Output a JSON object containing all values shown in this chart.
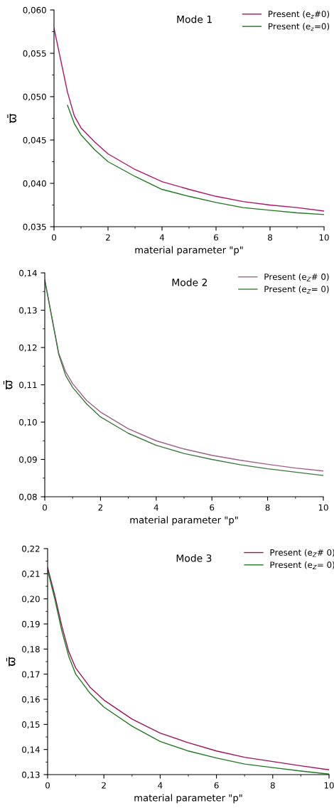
{
  "chart_data": [
    {
      "type": "line",
      "title": "Mode 1",
      "xlabel": "material parameter \"p\"",
      "ylabel": "ϖ̄",
      "xlim": [
        0,
        10
      ],
      "xticks": [
        0,
        2,
        4,
        6,
        8,
        10
      ],
      "ylim": [
        0.035,
        0.06
      ],
      "yticks": [
        {
          "value": 0.035,
          "label": "0,035"
        },
        {
          "value": 0.04,
          "label": "0,040"
        },
        {
          "value": 0.045,
          "label": "0,045"
        },
        {
          "value": 0.05,
          "label": "0,050"
        },
        {
          "value": 0.055,
          "label": "0,055"
        },
        {
          "value": 0.06,
          "label": "0,060"
        }
      ],
      "legend": "top right",
      "grid": false,
      "marker": "none",
      "line_style": "solid",
      "series": [
        {
          "name": "Present (e$_{z}$#0)",
          "color": "#b0106a",
          "x": [
            0,
            0.5,
            0.75,
            1,
            1.5,
            2,
            3,
            4,
            5,
            6,
            7,
            8,
            9,
            10
          ],
          "values": [
            0.0579,
            0.0505,
            0.0478,
            0.0464,
            0.0448,
            0.0434,
            0.0416,
            0.0402,
            0.0393,
            0.0385,
            0.0379,
            0.0375,
            0.0372,
            0.0368
          ]
        },
        {
          "name": "Present (e$_{z}$=0)",
          "color": "#1e7a1e",
          "x": [
            0.5,
            0.75,
            1,
            1.5,
            2,
            3,
            4,
            5,
            6,
            7,
            8,
            9,
            10
          ],
          "values": [
            0.049,
            0.0469,
            0.0456,
            0.0439,
            0.0425,
            0.0408,
            0.0393,
            0.0385,
            0.0378,
            0.0372,
            0.0369,
            0.0366,
            0.0364
          ]
        }
      ]
    },
    {
      "type": "line",
      "title": "Mode 2",
      "xlabel": "material parameter \"p\"",
      "ylabel": "ϖ̄",
      "xlim": [
        0,
        10
      ],
      "xticks": [
        0,
        2,
        4,
        6,
        8,
        10
      ],
      "ylim": [
        0.08,
        0.14
      ],
      "yticks": [
        {
          "value": 0.08,
          "label": "0,08"
        },
        {
          "value": 0.09,
          "label": "0,09"
        },
        {
          "value": 0.1,
          "label": "0,10"
        },
        {
          "value": 0.11,
          "label": "0,11"
        },
        {
          "value": 0.12,
          "label": "0,12"
        },
        {
          "value": 0.13,
          "label": "0,13"
        },
        {
          "value": 0.14,
          "label": "0,14"
        }
      ],
      "legend": "top right",
      "grid": false,
      "marker": "none",
      "line_style": "solid",
      "series": [
        {
          "name": "Present (e$_{Z}$# 0)",
          "color": "#a06088",
          "x": [
            0,
            0.5,
            0.75,
            1,
            1.5,
            2,
            3,
            4,
            5,
            6,
            7,
            8,
            9,
            10
          ],
          "values": [
            0.1382,
            0.1185,
            0.1135,
            0.1103,
            0.1058,
            0.1027,
            0.0982,
            0.095,
            0.0928,
            0.0911,
            0.0898,
            0.0887,
            0.0877,
            0.0869
          ]
        },
        {
          "name": "Present (e$_{Z}$= 0)",
          "color": "#3a7a3a",
          "x": [
            0,
            0.5,
            0.75,
            1,
            1.5,
            2,
            3,
            4,
            5,
            6,
            7,
            8,
            9,
            10
          ],
          "values": [
            0.138,
            0.1182,
            0.1125,
            0.1093,
            0.1049,
            0.1014,
            0.097,
            0.0938,
            0.0916,
            0.09,
            0.0886,
            0.0875,
            0.0866,
            0.0857
          ]
        }
      ]
    },
    {
      "type": "line",
      "title": "Mode 3",
      "xlabel": "material parameter \"p\"",
      "ylabel": "ϖ̄",
      "xlim": [
        0,
        10
      ],
      "xticks": [
        0,
        2,
        4,
        6,
        8,
        10
      ],
      "ylim": [
        0.13,
        0.22
      ],
      "yticks": [
        {
          "value": 0.13,
          "label": "0,13"
        },
        {
          "value": 0.14,
          "label": "0,14"
        },
        {
          "value": 0.15,
          "label": "0,15"
        },
        {
          "value": 0.16,
          "label": "0,16"
        },
        {
          "value": 0.17,
          "label": "0,17"
        },
        {
          "value": 0.18,
          "label": "0,18"
        },
        {
          "value": 0.19,
          "label": "0,19"
        },
        {
          "value": 0.2,
          "label": "0,20"
        },
        {
          "value": 0.21,
          "label": "0,21"
        },
        {
          "value": 0.22,
          "label": "0,22"
        }
      ],
      "legend": "top right",
      "grid": false,
      "marker": "none",
      "line_style": "solid",
      "series": [
        {
          "name": "Present (e$_{Z}$# 0)",
          "color": "#a0105a",
          "x": [
            0,
            0.25,
            0.5,
            0.75,
            1,
            1.5,
            2,
            3,
            4,
            5,
            6,
            7,
            8,
            9,
            10
          ],
          "values": [
            0.2125,
            0.2016,
            0.1894,
            0.179,
            0.1724,
            0.1649,
            0.1597,
            0.1521,
            0.1465,
            0.1427,
            0.1394,
            0.1369,
            0.1352,
            0.1335,
            0.1319
          ]
        },
        {
          "name": "Present (e$_{Z}$= 0)",
          "color": "#1e7a1e",
          "x": [
            0,
            0.25,
            0.5,
            0.75,
            1,
            1.5,
            2,
            3,
            4,
            5,
            6,
            7,
            8,
            9,
            10
          ],
          "values": [
            0.2115,
            0.2002,
            0.1875,
            0.1771,
            0.17,
            0.1625,
            0.1569,
            0.1493,
            0.1432,
            0.1394,
            0.1366,
            0.1342,
            0.1328,
            0.1314,
            0.1302
          ]
        }
      ]
    }
  ]
}
